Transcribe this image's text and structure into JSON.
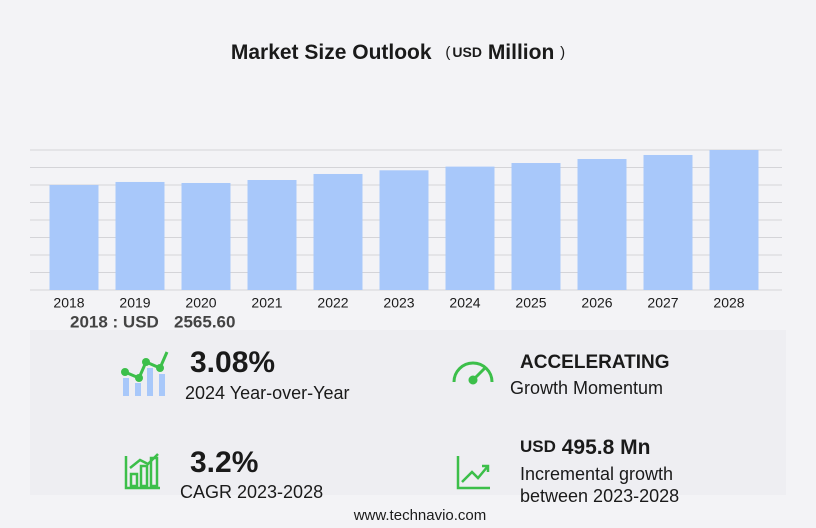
{
  "chart_data": {
    "type": "bar",
    "title": "Market Size Outlook",
    "title_unit": {
      "open": "(",
      "currency": "USD",
      "unit": "Million",
      "close": ")"
    },
    "categories": [
      "2018",
      "2019",
      "2020",
      "2021",
      "2022",
      "2023",
      "2024",
      "2025",
      "2026",
      "2027",
      "2028"
    ],
    "values": [
      2565.6,
      2639,
      2614,
      2687,
      2834,
      2924,
      3014,
      3102,
      3200,
      3298,
      3420
    ],
    "color": "#a8c8fa",
    "ylim": [
      0,
      3420
    ],
    "yticks": [
      0,
      427.5,
      855,
      1282.5,
      1710,
      2137.5,
      2565,
      2992.5,
      3420
    ],
    "grid": true
  },
  "base_year": {
    "label": "2018 : USD",
    "value": "2565.60"
  },
  "kpis": {
    "yoy": {
      "value": "3.08%",
      "label": "2024 Year-over-Year"
    },
    "momentum": {
      "value": "ACCELERATING",
      "label": "Growth Momentum"
    },
    "cagr": {
      "value": "3.2%",
      "label": "CAGR 2023-2028"
    },
    "incremental": {
      "currency": "USD",
      "value": "495.8 Mn",
      "label1": "Incremental growth",
      "label2": "between 2023-2028"
    }
  },
  "footer": "www.technavio.com"
}
